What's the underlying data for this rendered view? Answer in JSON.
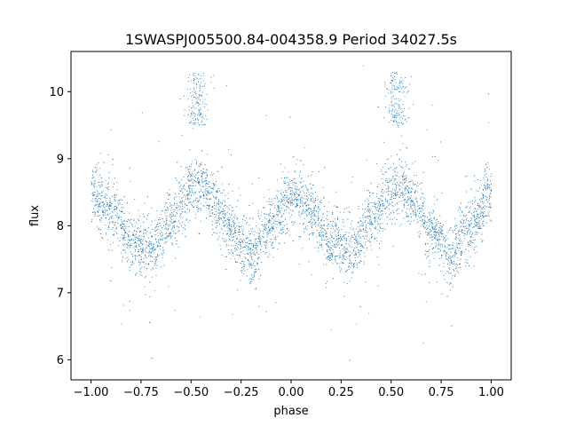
{
  "chart_data": {
    "type": "scatter",
    "title": "1SWASPJ005500.84-004358.9 Period 34027.5s",
    "xlabel": "phase",
    "ylabel": "flux",
    "xlim": [
      -1.1,
      1.1
    ],
    "ylim": [
      5.7,
      10.6
    ],
    "xticks": [
      -1.0,
      -0.75,
      -0.5,
      -0.25,
      0.0,
      0.25,
      0.5,
      0.75,
      1.0
    ],
    "xtick_labels": [
      "−1.00",
      "−0.75",
      "−0.50",
      "−0.25",
      "0.00",
      "0.25",
      "0.50",
      "0.75",
      "1.00"
    ],
    "yticks": [
      6,
      7,
      8,
      9,
      10
    ],
    "ytick_labels": [
      "6",
      "7",
      "8",
      "9",
      "10"
    ],
    "grid": false,
    "legend": "none",
    "marker_color": "#1f77b4",
    "series": [
      {
        "phase_range": [
          -1.0,
          1.0
        ],
        "model_profile": {
          "phase": [
            0.0,
            0.1,
            0.2,
            0.3,
            0.4,
            0.5,
            0.55,
            0.6,
            0.7,
            0.8,
            0.9,
            1.0
          ],
          "flux": [
            8.5,
            8.2,
            7.75,
            7.65,
            8.1,
            8.55,
            8.6,
            8.4,
            7.9,
            7.6,
            8.0,
            8.5
          ]
        },
        "scatter_sigma": 0.22,
        "high_flux_clumps": [
          {
            "phase": -0.47,
            "flux_range": [
              9.5,
              10.3
            ]
          },
          {
            "phase": 0.53,
            "flux_range": [
              9.5,
              10.3
            ]
          }
        ]
      }
    ]
  }
}
